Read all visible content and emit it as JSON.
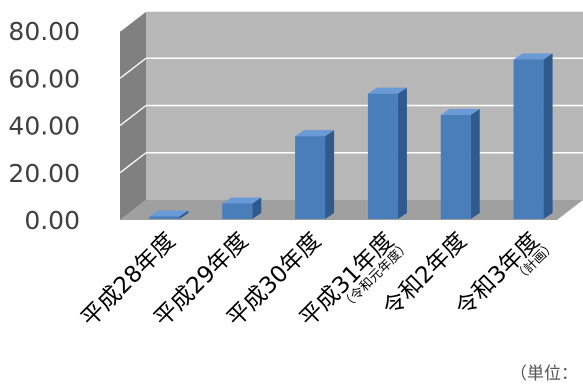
{
  "chart_data": {
    "type": "bar",
    "title": "",
    "xlabel": "",
    "ylabel": "",
    "categories": [
      "平成28年度",
      "平成29年度",
      "平成30年度",
      "平成31年度",
      "令和2年度",
      "令和3年度"
    ],
    "category_notes": [
      "",
      "",
      "",
      "（令和元年度）",
      "",
      "（計画）"
    ],
    "values": [
      1.5,
      7.0,
      35.5,
      53.5,
      44.5,
      68.0
    ],
    "ylim": [
      0,
      80
    ],
    "yticks": [
      "0.00",
      "20.00",
      "40.00",
      "60.00",
      "80.00"
    ],
    "grid": true,
    "legend": "none",
    "unit_note": "（単位：",
    "colors": {
      "bar_front": "#4a7ebb",
      "bar_side": "#2f5a8e",
      "bar_top": "#6b9bd6",
      "wall": "#b7b7b7",
      "wall_side": "#808080",
      "floor": "#a0a0a0",
      "grid": "#ffffff"
    }
  }
}
